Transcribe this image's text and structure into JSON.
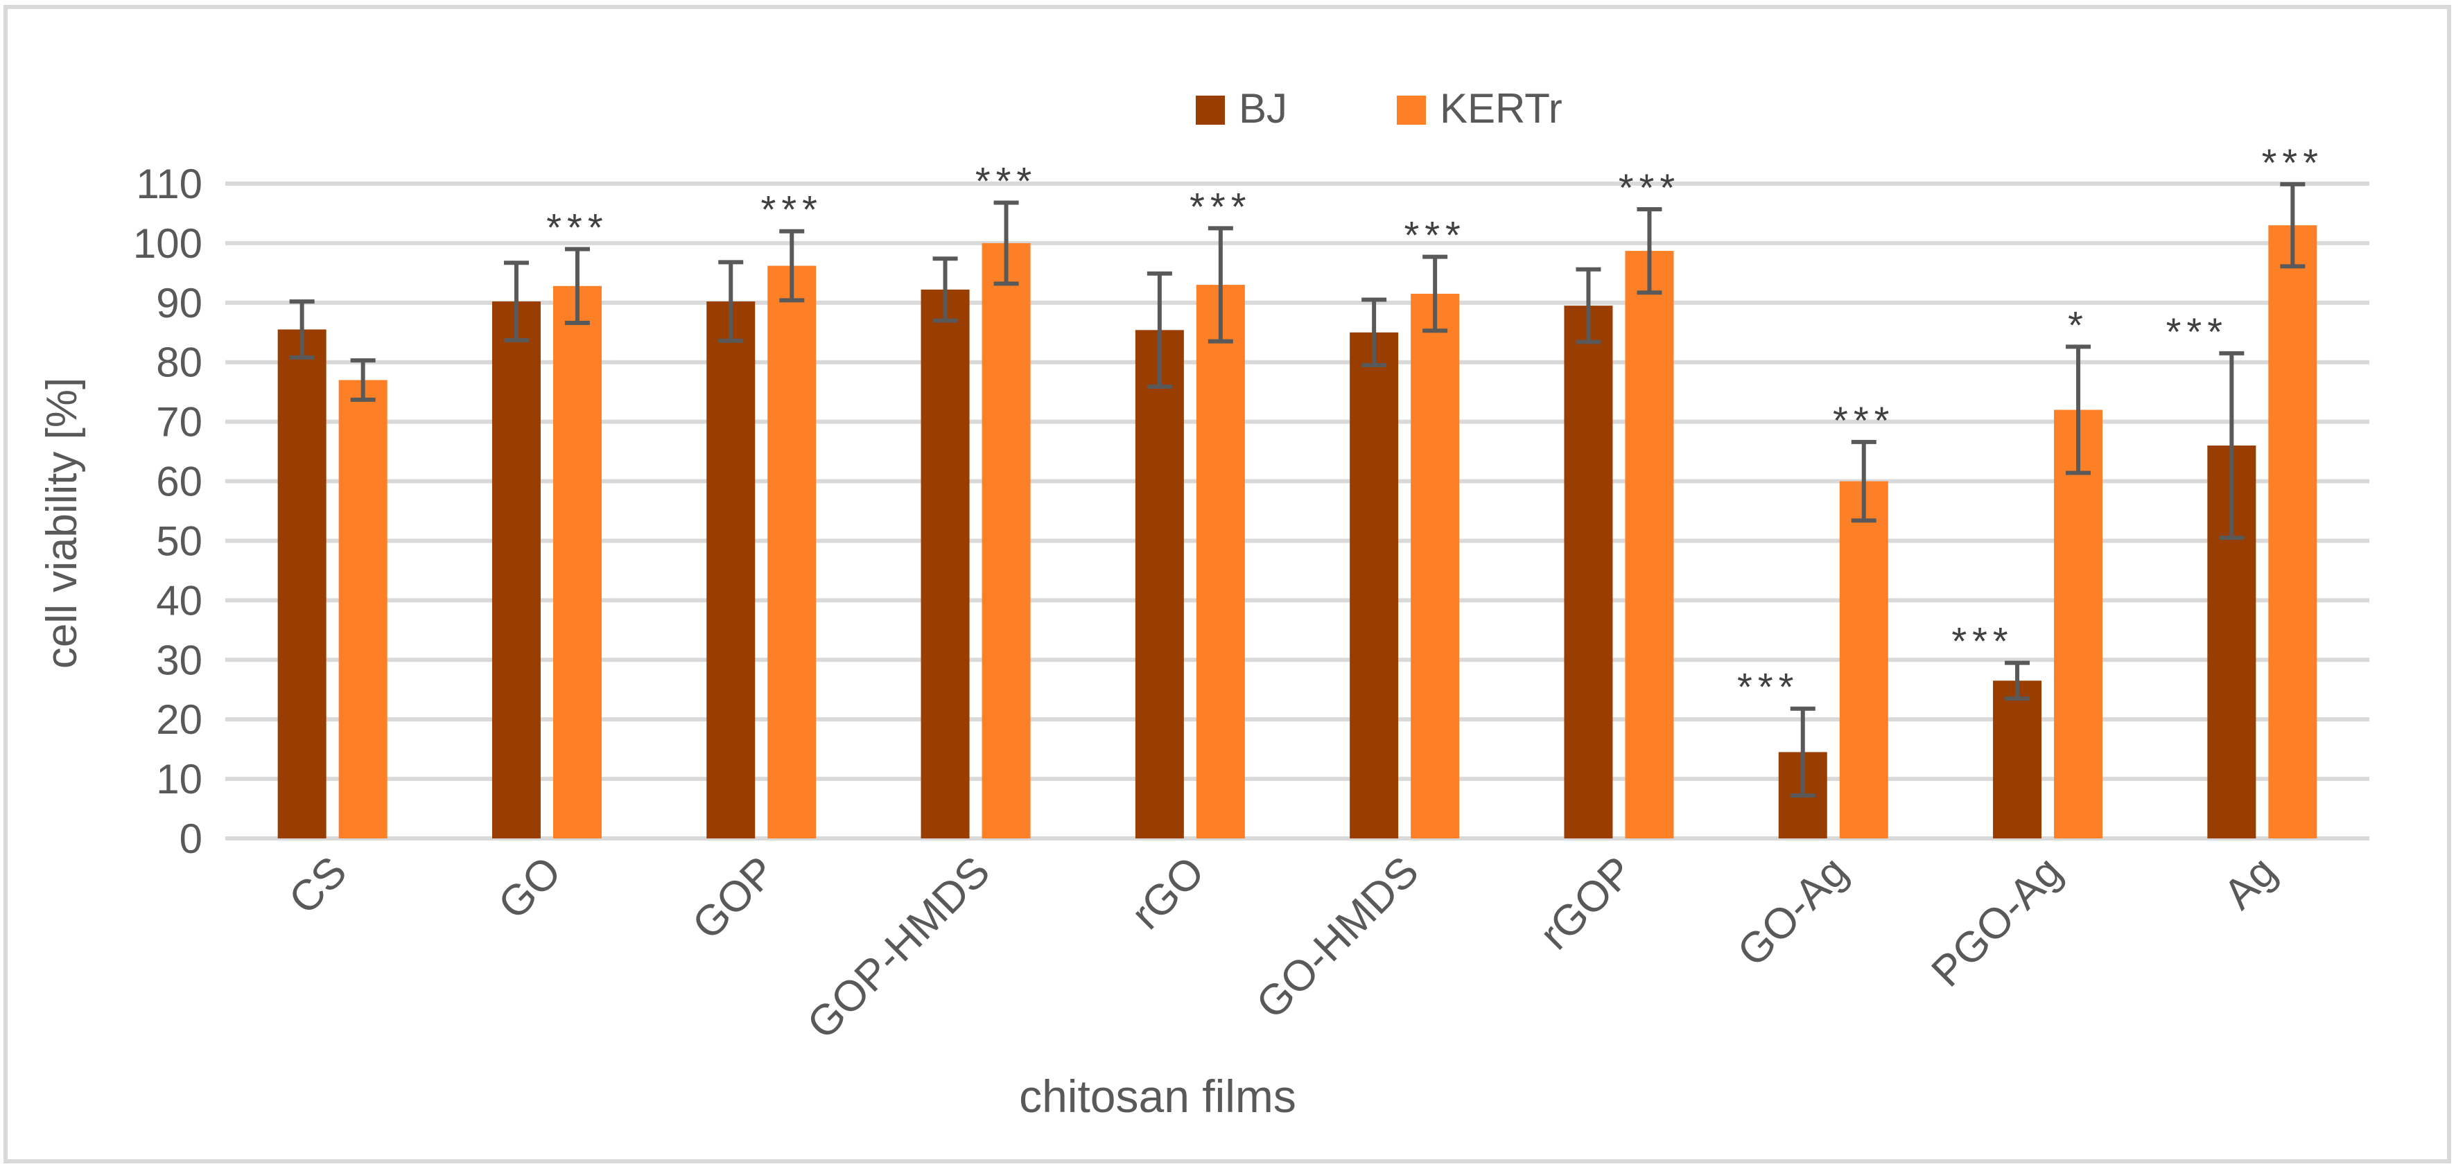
{
  "chart_data": {
    "type": "bar",
    "title": "",
    "xlabel": "chitosan films",
    "ylabel": "cell viability [%]",
    "ylim": [
      0,
      110
    ],
    "yticks": [
      0,
      10,
      20,
      30,
      40,
      50,
      60,
      70,
      80,
      90,
      100,
      110
    ],
    "grid": true,
    "legend_position": "top-center",
    "categories": [
      "CS",
      "GO",
      "GOP",
      "GOP-HMDS",
      "rGO",
      "GO-HMDS",
      "rGOP",
      "GO-Ag",
      "PGO-Ag",
      "Ag"
    ],
    "series": [
      {
        "name": "BJ",
        "color": "#993d00",
        "values": [
          85.5,
          90.2,
          90.2,
          92.2,
          85.4,
          85.0,
          89.5,
          14.5,
          26.5,
          66.0
        ],
        "errors": [
          4.7,
          6.5,
          6.6,
          5.2,
          9.5,
          5.5,
          6.1,
          7.3,
          3.0,
          15.5
        ],
        "significance": [
          "",
          "",
          "",
          "",
          "",
          "",
          "",
          "***",
          "***",
          "***"
        ]
      },
      {
        "name": "KERTr",
        "color": "#fd8026",
        "values": [
          77.0,
          92.8,
          96.2,
          100.0,
          93.0,
          91.5,
          98.7,
          60.0,
          72.0,
          103.0
        ],
        "errors": [
          3.3,
          6.2,
          5.8,
          6.8,
          9.5,
          6.2,
          7.0,
          6.6,
          10.6,
          6.9
        ],
        "significance": [
          "",
          "***",
          "***",
          "***",
          "***",
          "***",
          "***",
          "***",
          "*",
          "***"
        ]
      }
    ],
    "error_bar_color": "#595959",
    "grid_color": "#d9d9d9",
    "text_color": "#595959"
  }
}
